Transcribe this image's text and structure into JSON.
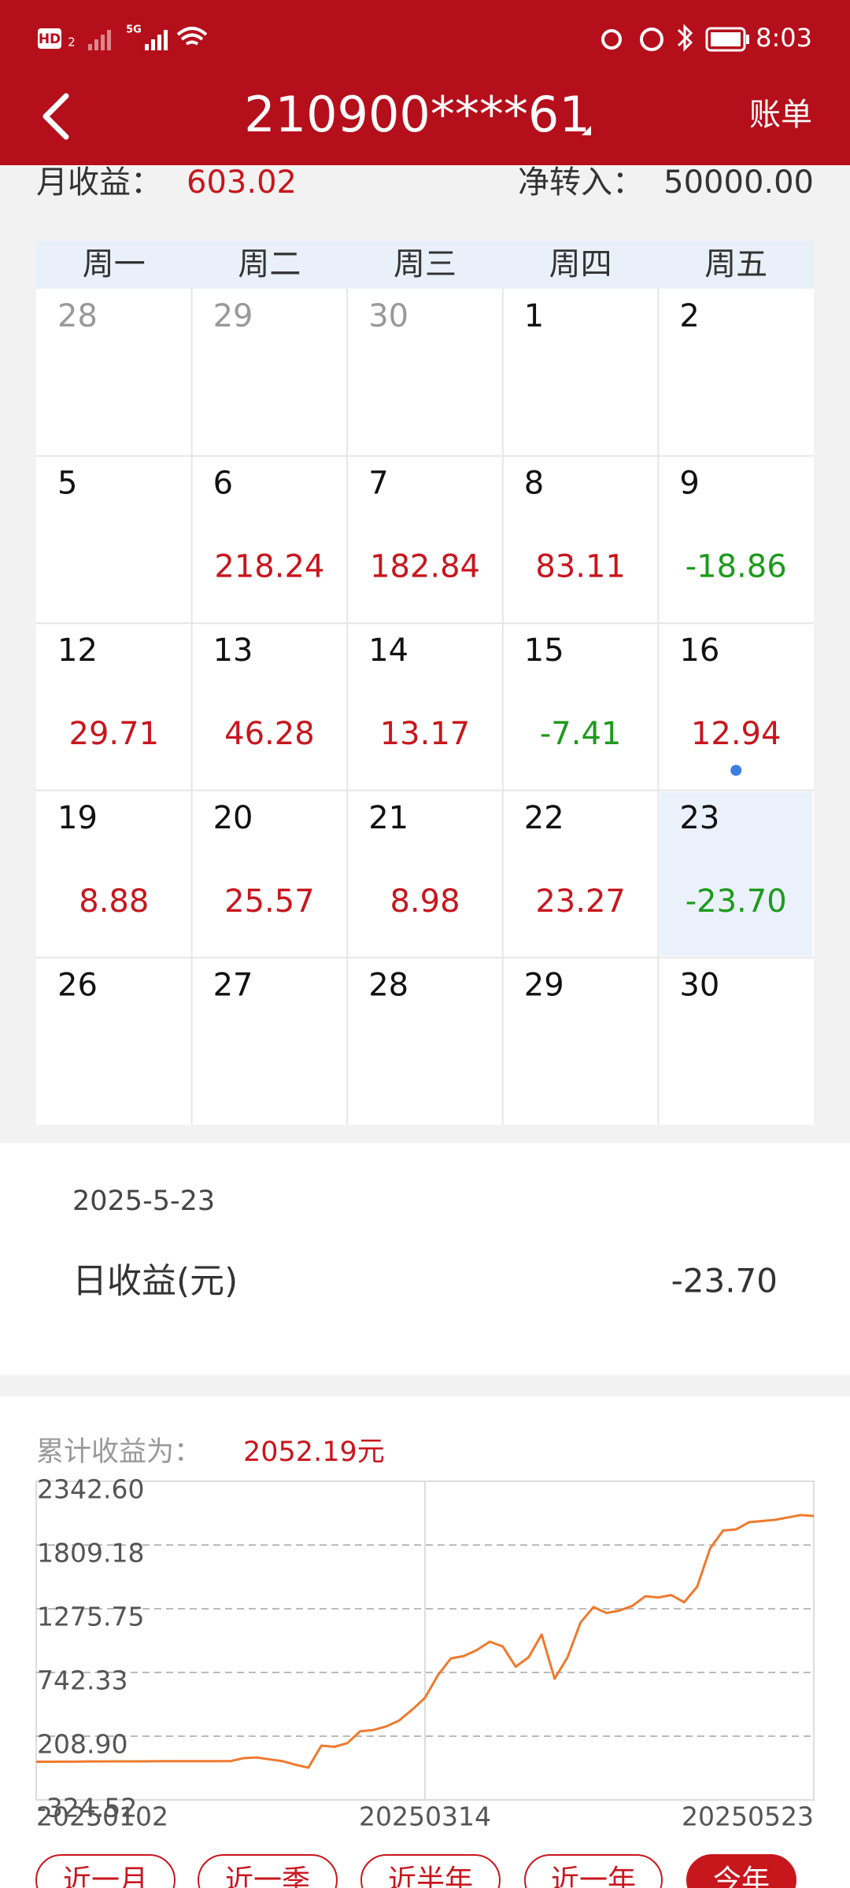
{
  "status_bar": {
    "hd": "HD",
    "sim": "2",
    "net": "5G",
    "time": "8:03"
  },
  "header": {
    "title": "210900****61",
    "action": "账单"
  },
  "summary": {
    "month_label": "月收益：",
    "month_value": "603.02",
    "net_label": "净转入：",
    "net_value": "50000.00"
  },
  "calendar": {
    "weekdays": [
      "周一",
      "周二",
      "周三",
      "周四",
      "周五"
    ],
    "weeks": [
      [
        {
          "day": "28",
          "muted": true
        },
        {
          "day": "29",
          "muted": true
        },
        {
          "day": "30",
          "muted": true
        },
        {
          "day": "1"
        },
        {
          "day": "2"
        }
      ],
      [
        {
          "day": "5"
        },
        {
          "day": "6",
          "value": "218.24"
        },
        {
          "day": "7",
          "value": "182.84"
        },
        {
          "day": "8",
          "value": "83.11"
        },
        {
          "day": "9",
          "value": "-18.86"
        }
      ],
      [
        {
          "day": "12",
          "value": "29.71"
        },
        {
          "day": "13",
          "value": "46.28"
        },
        {
          "day": "14",
          "value": "13.17"
        },
        {
          "day": "15",
          "value": "-7.41"
        },
        {
          "day": "16",
          "value": "12.94",
          "dot": true
        }
      ],
      [
        {
          "day": "19",
          "value": "8.88"
        },
        {
          "day": "20",
          "value": "25.57"
        },
        {
          "day": "21",
          "value": "8.98"
        },
        {
          "day": "22",
          "value": "23.27"
        },
        {
          "day": "23",
          "value": "-23.70",
          "selected": true
        }
      ],
      [
        {
          "day": "26"
        },
        {
          "day": "27"
        },
        {
          "day": "28"
        },
        {
          "day": "29"
        },
        {
          "day": "30"
        }
      ]
    ]
  },
  "detail": {
    "date": "2025-5-23",
    "label": "日收益(元)",
    "value": "-23.70"
  },
  "chart_data": {
    "type": "line",
    "title": "累计收益为：",
    "total": "2052.19元",
    "color": "#ee7a2e",
    "categories": [
      "20250102",
      null,
      null,
      null,
      null,
      null,
      null,
      null,
      null,
      null,
      null,
      null,
      null,
      null,
      null,
      null,
      null,
      null,
      null,
      null,
      null,
      null,
      null,
      null,
      null,
      null,
      null,
      null,
      null,
      null,
      "20250314",
      null,
      null,
      null,
      null,
      null,
      null,
      null,
      null,
      null,
      null,
      null,
      null,
      null,
      null,
      null,
      null,
      null,
      null,
      null,
      null,
      null,
      null,
      null,
      null,
      null,
      null,
      null,
      null,
      null,
      "20250523"
    ],
    "values": [
      -5,
      -5,
      -4,
      -4,
      -3,
      -3,
      -2,
      -2,
      -2,
      -1,
      0,
      0,
      0,
      0,
      0,
      0,
      25,
      30,
      15,
      0,
      -30,
      -55,
      130,
      120,
      150,
      250,
      260,
      290,
      340,
      430,
      530,
      720,
      860,
      880,
      930,
      1000,
      960,
      790,
      870,
      1060,
      690,
      870,
      1160,
      1290,
      1240,
      1260,
      1300,
      1380,
      1370,
      1390,
      1330,
      1460,
      1780,
      1930,
      1940,
      2000,
      2010,
      2020,
      2040,
      2060,
      2052.19
    ],
    "ylim": [
      -324.52,
      2342.6
    ],
    "yticks": [
      -324.52,
      {
        "value": 208.9,
        "label": "208.90"
      },
      742.33,
      1275.75,
      1809.18,
      {
        "value": 2342.6,
        "label": "2342.60"
      }
    ],
    "grid": true
  },
  "ranges": {
    "buttons": [
      "近一月",
      "近一季",
      "近半年",
      "近一年",
      "今年"
    ],
    "active": 4
  }
}
